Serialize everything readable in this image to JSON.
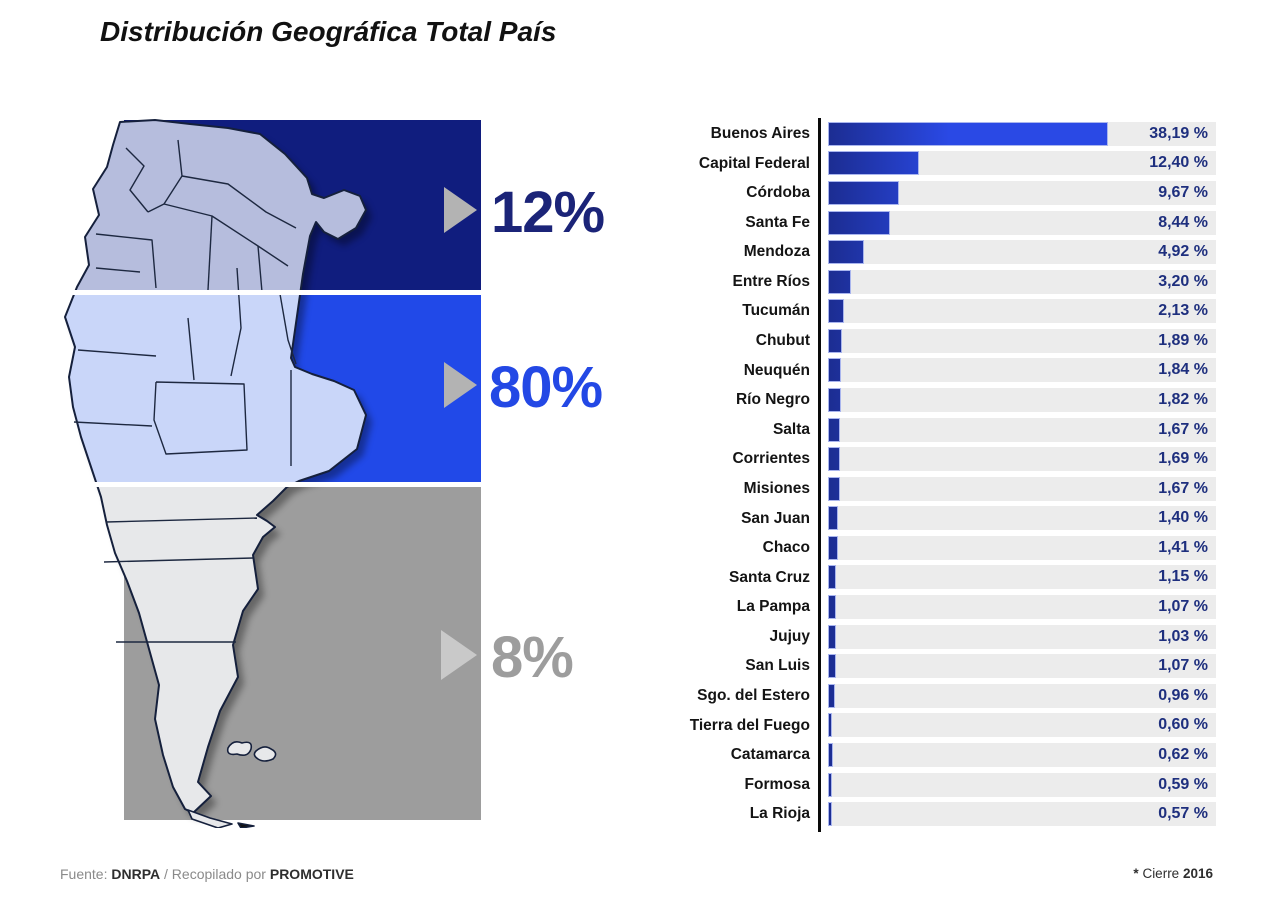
{
  "title": "Distribución Geográfica Total País",
  "map": {
    "description_labels": [
      "12%",
      "80%",
      "8%"
    ],
    "segments": [
      {
        "label": "12%",
        "band_color": "#101d7e",
        "region_fill": "#b6bddd",
        "text_color": "#1b2478",
        "arrow_color": "#b3b3b3"
      },
      {
        "label": "80%",
        "band_color": "#2149e8",
        "region_fill": "#c9d6f9",
        "text_color": "#2348e5",
        "arrow_color": "#b3b3b3"
      },
      {
        "label": "8%",
        "band_color": "#9d9d9d",
        "region_fill": "#e7e8ea",
        "text_color": "#9d9d9d",
        "arrow_color": "#c9c9c9"
      }
    ]
  },
  "chart_data": {
    "type": "bar",
    "orientation": "horizontal",
    "title": "",
    "xlabel": "",
    "ylabel": "",
    "xlim": [
      0,
      40
    ],
    "grid": false,
    "track_color": "#ececec",
    "bar_color_start": "#1c2d92",
    "bar_color_end": "#2a49e5",
    "categories": [
      "Buenos Aires",
      "Capital Federal",
      "Córdoba",
      "Santa Fe",
      "Mendoza",
      "Entre Ríos",
      "Tucumán",
      "Chubut",
      "Neuquén",
      "Río Negro",
      "Salta",
      "Corrientes",
      "Misiones",
      "San Juan",
      "Chaco",
      "Santa Cruz",
      "La Pampa",
      "Jujuy",
      "San Luis",
      "Sgo. del Estero",
      "Tierra del Fuego",
      "Catamarca",
      "Formosa",
      "La Rioja"
    ],
    "values": [
      38.19,
      12.4,
      9.67,
      8.44,
      4.92,
      3.2,
      2.13,
      1.89,
      1.84,
      1.82,
      1.67,
      1.69,
      1.67,
      1.4,
      1.41,
      1.15,
      1.07,
      1.03,
      1.07,
      0.96,
      0.6,
      0.62,
      0.59,
      0.57
    ],
    "value_labels": [
      "38,19 %",
      "12,40 %",
      "9,67 %",
      "8,44 %",
      "4,92 %",
      "3,20 %",
      "2,13 %",
      "1,89 %",
      "1,84 %",
      "1,82 %",
      "1,67 %",
      "1,69 %",
      "1,67 %",
      "1,40 %",
      "1,41 %",
      "1,15 %",
      "1,07 %",
      "1,03 %",
      "1,07 %",
      "0,96 %",
      "0,60 %",
      "0,62 %",
      "0,59 %",
      "0,57 %"
    ]
  },
  "footer": {
    "source_prefix": "Fuente: ",
    "source_name": "DNRPA",
    "source_middle": " / Recopilado por ",
    "compiler": "PROMOTIVE",
    "note_star": "*",
    "note_text": " Cierre ",
    "note_year": "2016"
  }
}
